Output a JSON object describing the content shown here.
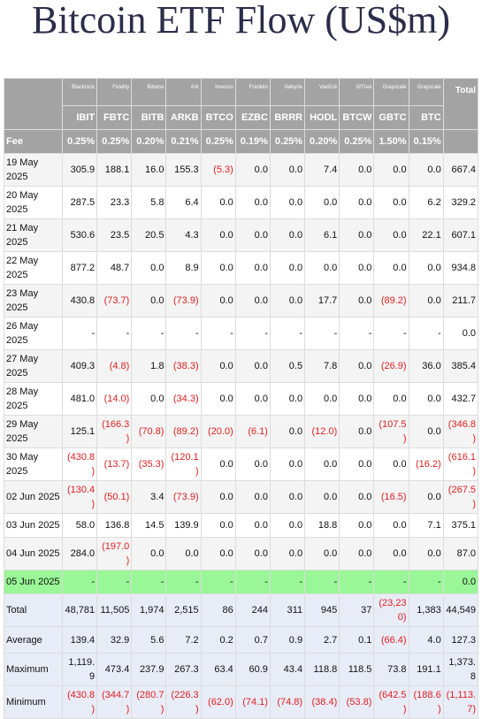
{
  "title": "Bitcoin ETF Flow (US$m)",
  "table": {
    "issuers": [
      "Blackrock",
      "Fidelity",
      "Bitwise",
      "Ark",
      "Invesco",
      "Franklin",
      "Valkyrie",
      "VanEck",
      "WTree",
      "Grayscale",
      "Grayscale",
      "Total"
    ],
    "tickers": [
      "IBIT",
      "FBTC",
      "BITB",
      "ARKB",
      "BTCO",
      "EZBC",
      "BRRR",
      "HODL",
      "BTCW",
      "GBTC",
      "BTC"
    ],
    "fee_label": "Fee",
    "fees": [
      "0.25%",
      "0.25%",
      "0.20%",
      "0.21%",
      "0.25%",
      "0.19%",
      "0.25%",
      "0.20%",
      "0.25%",
      "1.50%",
      "0.15%"
    ],
    "rows": [
      {
        "date": "19 May 2025",
        "values": [
          "305.9",
          "188.1",
          "16.0",
          "155.3",
          "(5.3)",
          "0.0",
          "0.0",
          "7.4",
          "0.0",
          "0.0",
          "0.0",
          "667.4"
        ]
      },
      {
        "date": "20 May 2025",
        "values": [
          "287.5",
          "23.3",
          "5.8",
          "6.4",
          "0.0",
          "0.0",
          "0.0",
          "0.0",
          "0.0",
          "0.0",
          "6.2",
          "329.2"
        ]
      },
      {
        "date": "21 May 2025",
        "values": [
          "530.6",
          "23.5",
          "20.5",
          "4.3",
          "0.0",
          "0.0",
          "0.0",
          "6.1",
          "0.0",
          "0.0",
          "22.1",
          "607.1"
        ]
      },
      {
        "date": "22 May 2025",
        "values": [
          "877.2",
          "48.7",
          "0.0",
          "8.9",
          "0.0",
          "0.0",
          "0.0",
          "0.0",
          "0.0",
          "0.0",
          "0.0",
          "934.8"
        ]
      },
      {
        "date": "23 May 2025",
        "values": [
          "430.8",
          "(73.7)",
          "0.0",
          "(73.9)",
          "0.0",
          "0.0",
          "0.0",
          "17.7",
          "0.0",
          "(89.2)",
          "0.0",
          "211.7"
        ]
      },
      {
        "date": "26 May 2025",
        "values": [
          "-",
          "-",
          "-",
          "-",
          "-",
          "-",
          "-",
          "-",
          "-",
          "-",
          "-",
          "0.0"
        ]
      },
      {
        "date": "27 May 2025",
        "values": [
          "409.3",
          "(4.8)",
          "1.8",
          "(38.3)",
          "0.0",
          "0.0",
          "0.5",
          "7.8",
          "0.0",
          "(26.9)",
          "36.0",
          "385.4"
        ]
      },
      {
        "date": "28 May 2025",
        "values": [
          "481.0",
          "(14.0)",
          "0.0",
          "(34.3)",
          "0.0",
          "0.0",
          "0.0",
          "0.0",
          "0.0",
          "0.0",
          "0.0",
          "432.7"
        ]
      },
      {
        "date": "29 May 2025",
        "values": [
          "125.1",
          "(166.3)",
          "(70.8)",
          "(89.2)",
          "(20.0)",
          "(6.1)",
          "0.0",
          "(12.0)",
          "0.0",
          "(107.5)",
          "0.0",
          "(346.8)"
        ]
      },
      {
        "date": "30 May 2025",
        "values": [
          "(430.8)",
          "(13.7)",
          "(35.3)",
          "(120.1)",
          "0.0",
          "0.0",
          "0.0",
          "0.0",
          "0.0",
          "0.0",
          "(16.2)",
          "(616.1)"
        ]
      },
      {
        "date": "02 Jun 2025",
        "values": [
          "(130.4)",
          "(50.1)",
          "3.4",
          "(73.9)",
          "0.0",
          "0.0",
          "0.0",
          "0.0",
          "0.0",
          "(16.5)",
          "0.0",
          "(267.5)"
        ]
      },
      {
        "date": "03 Jun 2025",
        "values": [
          "58.0",
          "136.8",
          "14.5",
          "139.9",
          "0.0",
          "0.0",
          "0.0",
          "18.8",
          "0.0",
          "0.0",
          "7.1",
          "375.1"
        ]
      },
      {
        "date": "04 Jun 2025",
        "values": [
          "284.0",
          "(197.0)",
          "0.0",
          "0.0",
          "0.0",
          "0.0",
          "0.0",
          "0.0",
          "0.0",
          "0.0",
          "0.0",
          "87.0"
        ]
      },
      {
        "date": "05 Jun 2025",
        "highlight": true,
        "values": [
          "-",
          "-",
          "-",
          "-",
          "-",
          "-",
          "-",
          "-",
          "-",
          "-",
          "-",
          "0.0"
        ]
      }
    ],
    "summary": [
      {
        "label": "Total",
        "values": [
          "48,781",
          "11,505",
          "1,974",
          "2,515",
          "86",
          "244",
          "311",
          "945",
          "37",
          "(23,230)",
          "1,383",
          "44,549"
        ]
      },
      {
        "label": "Average",
        "values": [
          "139.4",
          "32.9",
          "5.6",
          "7.2",
          "0.2",
          "0.7",
          "0.9",
          "2.7",
          "0.1",
          "(66.4)",
          "4.0",
          "127.3"
        ]
      },
      {
        "label": "Maximum",
        "values": [
          "1,119.9",
          "473.4",
          "237.9",
          "267.3",
          "63.4",
          "60.9",
          "43.4",
          "118.8",
          "118.5",
          "73.8",
          "191.1",
          "1,373.8"
        ]
      },
      {
        "label": "Minimum",
        "values": [
          "(430.8)",
          "(344.7)",
          "(280.7)",
          "(226.3)",
          "(62.0)",
          "(74.1)",
          "(74.8)",
          "(38.4)",
          "(53.8)",
          "(642.5)",
          "(188.6)",
          "(1,113.7)"
        ]
      }
    ]
  }
}
